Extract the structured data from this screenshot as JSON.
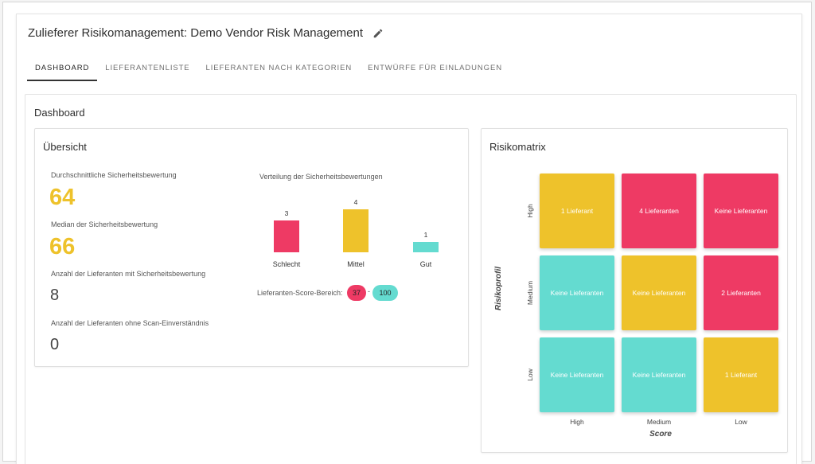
{
  "header": {
    "title": "Zulieferer Risikomanagement: Demo Vendor Risk Management"
  },
  "tabs": [
    {
      "label": "DASHBOARD"
    },
    {
      "label": "LIEFERANTENLISTE"
    },
    {
      "label": "LIEFERANTEN NACH KATEGORIEN"
    },
    {
      "label": "ENTWÜRFE FÜR EINLADUNGEN"
    }
  ],
  "dashboard": {
    "title": "Dashboard"
  },
  "overview": {
    "title": "Übersicht",
    "avg_label": "Durchschnittliche Sicherheitsbewertung",
    "avg_value": "64",
    "median_label": "Median der Sicherheitsbewertung",
    "median_value": "66",
    "rated_label": "Anzahl der Lieferanten mit Sicherheitsbewertung",
    "rated_value": "8",
    "noscan_label": "Anzahl der Lieferanten ohne Scan-Einverständnis",
    "noscan_value": "0",
    "distribution": {
      "title": "Verteilung der Sicherheitsbewertungen",
      "bars": [
        {
          "label": "Schlecht",
          "value": 3,
          "color": "#ee3a64"
        },
        {
          "label": "Mittel",
          "value": 4,
          "color": "#eec22b"
        },
        {
          "label": "Gut",
          "value": 1,
          "color": "#64dbd0"
        }
      ]
    },
    "range": {
      "label": "Lieferanten-Score-Bereich:",
      "min": "37",
      "max": "100",
      "separator": "-"
    }
  },
  "risk_matrix": {
    "title": "Risikomatrix",
    "y_title": "Risikoprofil",
    "x_title": "Score",
    "rows": [
      "High",
      "Medium",
      "Low"
    ],
    "cols": [
      "High",
      "Medium",
      "Low"
    ],
    "colors": {
      "yellow": "#eec22b",
      "red": "#ee3a64",
      "teal": "#64dbd0"
    },
    "cells": [
      [
        {
          "text": "1 Lieferant",
          "color": "yellow"
        },
        {
          "text": "4 Lieferanten",
          "color": "red"
        },
        {
          "text": "Keine Lieferanten",
          "color": "red"
        }
      ],
      [
        {
          "text": "Keine Lieferanten",
          "color": "teal"
        },
        {
          "text": "Keine Lieferanten",
          "color": "yellow"
        },
        {
          "text": "2 Lieferanten",
          "color": "red"
        }
      ],
      [
        {
          "text": "Keine Lieferanten",
          "color": "teal"
        },
        {
          "text": "Keine Lieferanten",
          "color": "teal"
        },
        {
          "text": "1 Lieferant",
          "color": "yellow"
        }
      ]
    ]
  }
}
